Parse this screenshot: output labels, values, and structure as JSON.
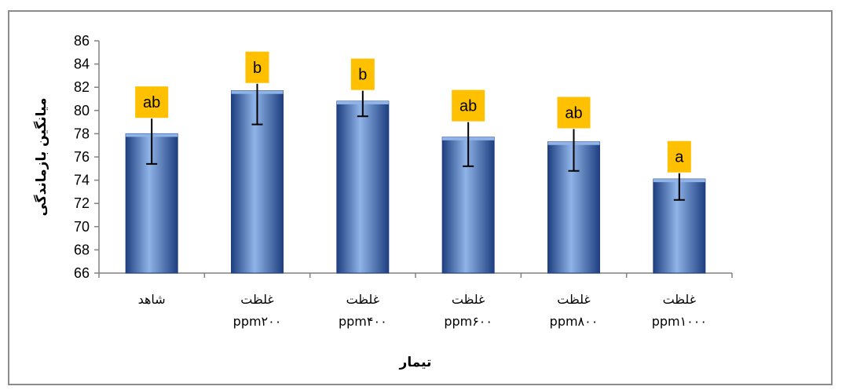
{
  "chart_data": {
    "type": "bar",
    "title": "",
    "xlabel": "تیمار",
    "ylabel": "میانگین بازماندگی",
    "ylim": [
      66,
      86
    ],
    "yticks": [
      66,
      68,
      70,
      72,
      74,
      76,
      78,
      80,
      82,
      84,
      86
    ],
    "grid": false,
    "legend": "none",
    "categories": [
      [
        "شاهد"
      ],
      [
        "غلظت",
        "ppm۲۰۰"
      ],
      [
        "غلظت",
        "ppm۴۰۰"
      ],
      [
        "غلظت",
        "ppm۶۰۰"
      ],
      [
        "غلظت",
        "ppm۸۰۰"
      ],
      [
        "غلظت",
        "ppm۱۰۰۰"
      ]
    ],
    "values": [
      78.0,
      81.7,
      80.8,
      77.7,
      77.3,
      74.1
    ],
    "error_low": [
      75.4,
      78.8,
      79.5,
      75.2,
      74.8,
      72.3
    ],
    "error_high": [
      79.3,
      82.3,
      81.7,
      79.0,
      78.4,
      74.6
    ],
    "significance_letters": [
      "ab",
      "b",
      "b",
      "ab",
      "ab",
      "a"
    ],
    "colors": {
      "bar": "#3f6fb8",
      "bar_light": "#8fb4e8",
      "bar_dark": "#1f3f80",
      "label_box": "#ffc000",
      "frame": "#8c8c8c"
    }
  }
}
